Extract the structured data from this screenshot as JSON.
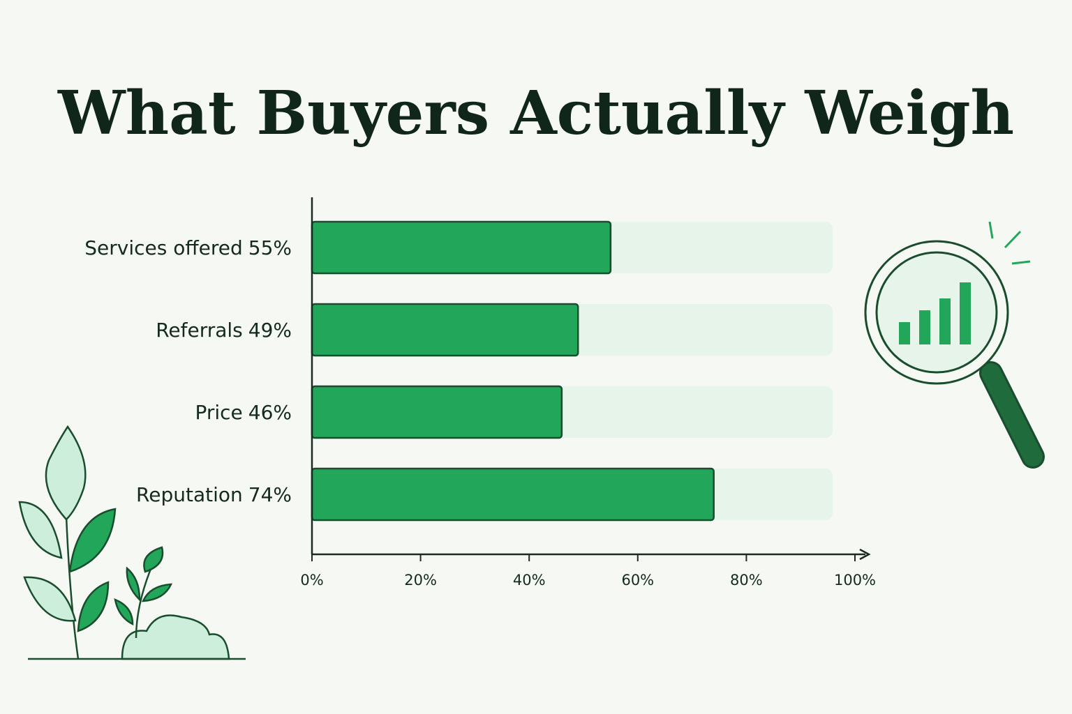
{
  "chart_data": {
    "type": "hbar",
    "title": "What Buyers Actually Weigh",
    "categories": [
      "Services offered",
      "Referrals",
      "Price",
      "Reputation"
    ],
    "values": [
      55,
      49,
      46,
      74
    ],
    "value_labels": [
      "55%",
      "49%",
      "46%",
      "74%"
    ],
    "color": "#22a65a",
    "xlim": [
      0,
      100
    ],
    "xticks": [
      {
        "value": 0,
        "label": "0%"
      },
      {
        "value": 20,
        "label": "20%"
      },
      {
        "value": 40,
        "label": "40%"
      },
      {
        "value": 60,
        "label": "60%"
      },
      {
        "value": 80,
        "label": "80%"
      },
      {
        "value": 100,
        "label": "100%"
      }
    ]
  }
}
